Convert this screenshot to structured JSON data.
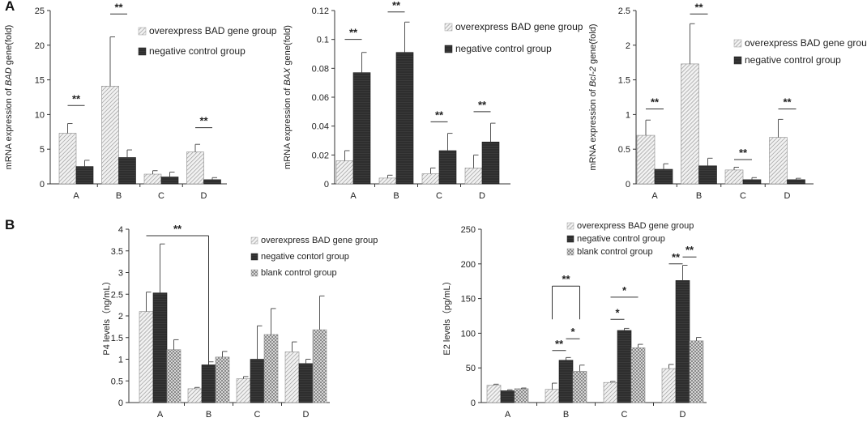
{
  "panel_labels": [
    "A",
    "B"
  ],
  "chart_data": [
    {
      "type": "bar",
      "ylabel": "mRNA expression of BAD gene(fold)",
      "ylabel_parts": [
        {
          "t": "mRNA expression of "
        },
        {
          "t": "BAD",
          "i": true
        },
        {
          "t": " gene(fold)"
        }
      ],
      "ylim": [
        0,
        25
      ],
      "yticks": [
        "0",
        "5",
        "10",
        "15",
        "20",
        "25"
      ],
      "ytick_values": [
        0,
        5,
        10,
        15,
        20,
        25
      ],
      "categories": [
        "A",
        "B",
        "C",
        "D"
      ],
      "series": [
        {
          "name": "overexpress BAD gene group",
          "pattern": "diag",
          "values": [
            7.3,
            14.1,
            1.4,
            4.6
          ],
          "errors": [
            1.4,
            7.1,
            0.5,
            1.1
          ]
        },
        {
          "name": "negative control group",
          "pattern": "dark",
          "values": [
            2.5,
            3.8,
            1.0,
            0.6
          ],
          "errors": [
            0.9,
            1.1,
            0.7,
            0.3
          ]
        }
      ],
      "annotations": [
        {
          "label": "**",
          "cat": 0,
          "y": 11.3
        },
        {
          "label": "**",
          "cat": 1,
          "y": 24.5
        },
        {
          "label": "**",
          "cat": 3,
          "y": 8.1
        }
      ]
    },
    {
      "type": "bar",
      "ylabel": "mRNA expression of BAX gene(fold)",
      "ylabel_parts": [
        {
          "t": "mRNA expression of "
        },
        {
          "t": "BAX",
          "i": true
        },
        {
          "t": " gene(fold)"
        }
      ],
      "ylim": [
        0,
        0.12
      ],
      "yticks": [
        "0",
        "0.02",
        "0.04",
        "0.06",
        "0.08",
        "0.1",
        "0.12"
      ],
      "ytick_values": [
        0,
        0.02,
        0.04,
        0.06,
        0.08,
        0.1,
        0.12
      ],
      "categories": [
        "A",
        "B",
        "C",
        "D"
      ],
      "series": [
        {
          "name": "overexpress BAD gene group",
          "pattern": "diag",
          "values": [
            0.016,
            0.004,
            0.007,
            0.011
          ],
          "errors": [
            0.007,
            0.002,
            0.004,
            0.009
          ]
        },
        {
          "name": "negative control group",
          "pattern": "dark",
          "values": [
            0.077,
            0.091,
            0.023,
            0.029
          ],
          "errors": [
            0.014,
            0.021,
            0.012,
            0.013
          ]
        }
      ],
      "annotations": [
        {
          "label": "**",
          "cat": 0,
          "y": 0.1
        },
        {
          "label": "**",
          "cat": 1,
          "y": 0.119
        },
        {
          "label": "**",
          "cat": 2,
          "y": 0.043
        },
        {
          "label": "**",
          "cat": 3,
          "y": 0.05
        }
      ]
    },
    {
      "type": "bar",
      "ylabel": "mRNA expression of Bcl-2 gene(fold)",
      "ylabel_parts": [
        {
          "t": "mRNA expression of "
        },
        {
          "t": "Bcl-2",
          "i": true
        },
        {
          "t": " gene(fold)"
        }
      ],
      "ylim": [
        0,
        2.5
      ],
      "yticks": [
        "0",
        "0.5",
        "1",
        "1.5",
        "2",
        "2.5"
      ],
      "ytick_values": [
        0,
        0.5,
        1,
        1.5,
        2,
        2.5
      ],
      "categories": [
        "A",
        "B",
        "C",
        "D"
      ],
      "series": [
        {
          "name": "overexpress BAD gene group",
          "pattern": "diag",
          "values": [
            0.7,
            1.73,
            0.2,
            0.67
          ],
          "errors": [
            0.22,
            0.58,
            0.04,
            0.26
          ]
        },
        {
          "name": "negative control group",
          "pattern": "dark",
          "values": [
            0.21,
            0.26,
            0.06,
            0.06
          ],
          "errors": [
            0.08,
            0.11,
            0.03,
            0.02
          ]
        }
      ],
      "annotations": [
        {
          "label": "**",
          "cat": 0,
          "y": 1.08
        },
        {
          "label": "**",
          "cat": 1,
          "y": 2.45
        },
        {
          "label": "**",
          "cat": 2,
          "y": 0.35
        },
        {
          "label": "**",
          "cat": 3,
          "y": 1.08
        }
      ]
    },
    {
      "type": "bar",
      "ylabel": "P4 levels（ng/mL）",
      "ylabel_parts": [
        {
          "t": "P4 levels（ng/mL）"
        }
      ],
      "ylim": [
        0,
        4
      ],
      "yticks": [
        "0",
        "0.5",
        "1",
        "1.5",
        "2",
        "2.5",
        "3",
        "3.5",
        "4"
      ],
      "ytick_values": [
        0,
        0.5,
        1,
        1.5,
        2,
        2.5,
        3,
        3.5,
        4
      ],
      "categories": [
        "A",
        "B",
        "C",
        "D"
      ],
      "series": [
        {
          "name": "overexpress BAD gene group",
          "pattern": "diag",
          "values": [
            2.1,
            0.32,
            0.55,
            1.17
          ],
          "errors": [
            0.45,
            0.03,
            0.05,
            0.23
          ]
        },
        {
          "name": "negative contorl group",
          "pattern": "dark",
          "values": [
            2.53,
            0.87,
            1.0,
            0.9
          ],
          "errors": [
            1.13,
            0.07,
            0.77,
            0.1
          ]
        },
        {
          "name": "blank control group",
          "pattern": "cross",
          "values": [
            1.22,
            1.05,
            1.57,
            1.68
          ],
          "errors": [
            0.23,
            0.13,
            0.6,
            0.78
          ]
        }
      ],
      "annotations": [
        {
          "label": "**",
          "type": "bracket",
          "from": [
            0,
            0
          ],
          "to": [
            1,
            1
          ],
          "y": 3.85,
          "drop_to": 0.87
        }
      ]
    },
    {
      "type": "bar",
      "ylabel": "E2 levels（pg/mL）",
      "ylabel_parts": [
        {
          "t": "E2 levels（pg/mL）"
        }
      ],
      "ylim": [
        0,
        250
      ],
      "yticks": [
        "0",
        "50",
        "100",
        "150",
        "200",
        "250"
      ],
      "ytick_values": [
        0,
        50,
        100,
        150,
        200,
        250
      ],
      "categories": [
        "A",
        "B",
        "C",
        "D"
      ],
      "series": [
        {
          "name": "overexpress BAD gene group",
          "pattern": "diag",
          "values": [
            25,
            19,
            29,
            49
          ],
          "errors": [
            1.5,
            9,
            1.5,
            6
          ]
        },
        {
          "name": "negative control group",
          "pattern": "dark",
          "values": [
            17,
            61,
            104,
            176
          ],
          "errors": [
            1.5,
            4,
            3,
            22
          ]
        },
        {
          "name": "blank control group",
          "pattern": "cross",
          "values": [
            20,
            45,
            79,
            89
          ],
          "errors": [
            1,
            9,
            5,
            5
          ]
        }
      ],
      "annotations": [
        {
          "label": "**",
          "type": "line",
          "cat": 1,
          "from": 0,
          "to": 1,
          "y": 75
        },
        {
          "label": "*",
          "type": "line",
          "cat": 1,
          "from": 1,
          "to": 2,
          "y": 92
        },
        {
          "label": "**",
          "type": "bracket",
          "cat": 1,
          "from": 0,
          "to": 2,
          "y": 168,
          "drop_to": 120
        },
        {
          "label": "*",
          "type": "line",
          "cat": 2,
          "from": 0,
          "to": 1,
          "y": 120
        },
        {
          "label": "*",
          "type": "line",
          "cat": 2,
          "from": 0,
          "to": 2,
          "y": 152
        },
        {
          "label": "**",
          "type": "line",
          "cat": 3,
          "from": 0,
          "to": 1,
          "y": 200
        },
        {
          "label": "**",
          "type": "line",
          "cat": 3,
          "from": 1,
          "to": 2,
          "y": 210
        }
      ]
    }
  ]
}
